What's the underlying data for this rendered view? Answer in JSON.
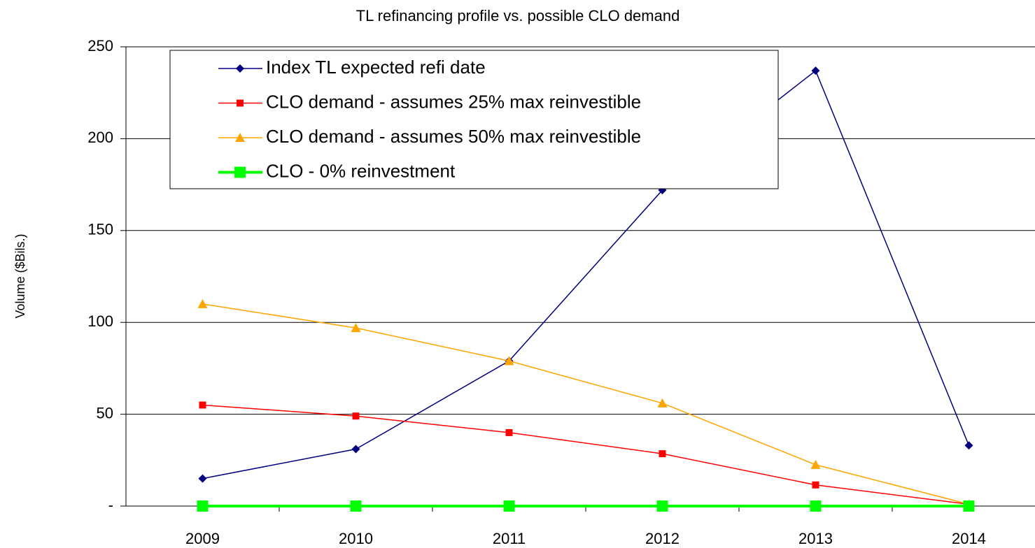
{
  "chart_data": {
    "type": "line",
    "title": "TL refinancing profile vs. possible CLO demand",
    "y_label": "Volume ($Bils.)",
    "categories": [
      "2009",
      "2010",
      "2011",
      "2012",
      "2013",
      "2014"
    ],
    "series": [
      {
        "name": "Index TL expected refi date",
        "color": "#000080",
        "marker": "diamond",
        "values": [
          15,
          31,
          79,
          172,
          237,
          33
        ]
      },
      {
        "name": "CLO demand - assumes 25% max reinvestible",
        "color": "#ff0000",
        "marker": "square",
        "values": [
          55,
          49,
          40,
          28.5,
          11.5,
          1
        ]
      },
      {
        "name": "CLO demand - assumes 50% max reinvestible",
        "color": "#ffa500",
        "marker": "triangle",
        "values": [
          110,
          97,
          79,
          56,
          22.5,
          1
        ]
      },
      {
        "name": "CLO - 0% reinvestment",
        "color": "#00ff00",
        "marker": "big-square",
        "values": [
          0,
          0,
          0,
          0,
          0,
          0
        ]
      }
    ],
    "ylim": [
      0,
      250
    ],
    "yticks": [
      {
        "value": 0,
        "label": "-"
      },
      50,
      100,
      150,
      200,
      250
    ],
    "grid": true,
    "legend": "upper left"
  }
}
